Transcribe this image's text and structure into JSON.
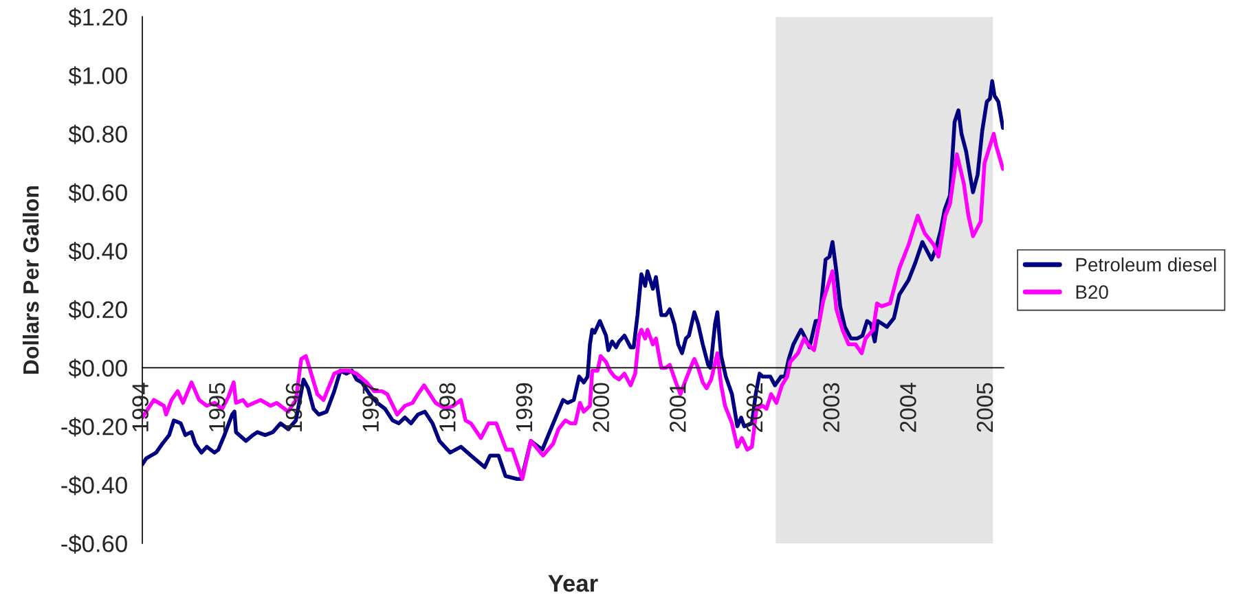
{
  "chart_data": {
    "type": "line",
    "xlabel": "Year",
    "ylabel": "Dollars Per Gallon",
    "xlim": [
      1994,
      2005.22
    ],
    "xticks": [
      1994,
      1995,
      1996,
      1997,
      1998,
      1999,
      2000,
      2001,
      2002,
      2003,
      2004,
      2005
    ],
    "ylim": [
      -0.6,
      1.2
    ],
    "yticks": [
      {
        "value": -0.6,
        "label": "-$0.60"
      },
      {
        "value": -0.4,
        "label": "-$0.40"
      },
      {
        "value": -0.2,
        "label": "-$0.20"
      },
      {
        "value": 0,
        "label": "$0.00"
      },
      {
        "value": 0.2,
        "label": "$0.20"
      },
      {
        "value": 0.4,
        "label": "$0.40"
      },
      {
        "value": 0.6,
        "label": "$0.60"
      },
      {
        "value": 0.8,
        "label": "$0.80"
      },
      {
        "value": 1.0,
        "label": "$1.00"
      },
      {
        "value": 1.2,
        "label": "$1.20"
      }
    ],
    "grid": false,
    "legend": "right",
    "bands": [
      {
        "axis": "x",
        "from": 2002.25,
        "to": 2005.08,
        "color": "#e4e4e4"
      }
    ],
    "series": [
      {
        "name": "Petroleum diesel",
        "color": "#000080",
        "x": [
          1994.0,
          1994.05,
          1994.18,
          1994.26,
          1994.35,
          1994.41,
          1994.5,
          1994.56,
          1994.64,
          1994.69,
          1994.77,
          1994.84,
          1994.94,
          1994.99,
          1995.07,
          1995.17,
          1995.2,
          1995.22,
          1995.35,
          1995.44,
          1995.5,
          1995.6,
          1995.7,
          1995.8,
          1995.9,
          1996.0,
          1996.05,
          1996.1,
          1996.16,
          1996.23,
          1996.3,
          1996.4,
          1996.5,
          1996.58,
          1996.66,
          1996.73,
          1996.79,
          1996.86,
          1996.96,
          1997.06,
          1997.16,
          1997.26,
          1997.34,
          1997.42,
          1997.5,
          1997.59,
          1997.68,
          1997.78,
          1997.87,
          1998.01,
          1998.15,
          1998.28,
          1998.46,
          1998.53,
          1998.64,
          1998.73,
          1998.88,
          1998.94,
          1999.06,
          1999.21,
          1999.32,
          1999.4,
          1999.48,
          1999.54,
          1999.62,
          1999.69,
          1999.75,
          1999.8,
          1999.83,
          1999.86,
          1999.89,
          1999.96,
          2000.04,
          2000.07,
          2000.12,
          2000.17,
          2000.21,
          2000.28,
          2000.36,
          2000.4,
          2000.45,
          2000.5,
          2000.55,
          2000.58,
          2000.65,
          2000.69,
          2000.76,
          2000.82,
          2000.87,
          2000.93,
          2000.98,
          2001.03,
          2001.08,
          2001.12,
          2001.19,
          2001.24,
          2001.3,
          2001.37,
          2001.4,
          2001.46,
          2001.49,
          2001.54,
          2001.6,
          2001.68,
          2001.75,
          2001.8,
          2001.84,
          2001.94,
          2001.99,
          2002.04,
          2002.08,
          2002.18,
          2002.24,
          2002.32,
          2002.37,
          2002.42,
          2002.48,
          2002.58,
          2002.64,
          2002.69,
          2002.77,
          2002.82,
          2002.9,
          2002.95,
          2002.99,
          2003.04,
          2003.09,
          2003.15,
          2003.23,
          2003.31,
          2003.38,
          2003.44,
          2003.49,
          2003.54,
          2003.58,
          2003.7,
          2003.79,
          2003.86,
          2003.98,
          2004.07,
          2004.16,
          2004.28,
          2004.34,
          2004.4,
          2004.45,
          2004.52,
          2004.58,
          2004.63,
          2004.67,
          2004.73,
          2004.78,
          2004.82,
          2004.88,
          2004.94,
          2005.0,
          2005.04,
          2005.07,
          2005.1,
          2005.15,
          2005.21
        ],
        "values": [
          -0.33,
          -0.31,
          -0.29,
          -0.26,
          -0.23,
          -0.18,
          -0.19,
          -0.23,
          -0.22,
          -0.26,
          -0.29,
          -0.27,
          -0.29,
          -0.28,
          -0.23,
          -0.16,
          -0.15,
          -0.22,
          -0.25,
          -0.23,
          -0.22,
          -0.23,
          -0.22,
          -0.19,
          -0.21,
          -0.18,
          -0.11,
          -0.04,
          -0.07,
          -0.14,
          -0.16,
          -0.15,
          -0.08,
          -0.01,
          -0.02,
          -0.01,
          -0.04,
          -0.05,
          -0.09,
          -0.12,
          -0.14,
          -0.18,
          -0.19,
          -0.17,
          -0.19,
          -0.16,
          -0.15,
          -0.19,
          -0.25,
          -0.29,
          -0.27,
          -0.3,
          -0.34,
          -0.3,
          -0.3,
          -0.37,
          -0.38,
          -0.38,
          -0.25,
          -0.28,
          -0.21,
          -0.16,
          -0.11,
          -0.12,
          -0.11,
          -0.03,
          -0.05,
          -0.03,
          0.08,
          0.13,
          0.12,
          0.16,
          0.11,
          0.06,
          0.09,
          0.07,
          0.09,
          0.11,
          0.07,
          0.07,
          0.18,
          0.32,
          0.28,
          0.33,
          0.27,
          0.31,
          0.18,
          0.18,
          0.2,
          0.15,
          0.08,
          0.05,
          0.1,
          0.11,
          0.19,
          0.15,
          0.08,
          0.01,
          0.0,
          0.15,
          0.19,
          0.04,
          -0.03,
          -0.09,
          -0.2,
          -0.17,
          -0.2,
          -0.19,
          -0.09,
          -0.02,
          -0.03,
          -0.03,
          -0.06,
          -0.03,
          -0.03,
          0.03,
          0.08,
          0.13,
          0.1,
          0.07,
          0.16,
          0.16,
          0.37,
          0.38,
          0.43,
          0.33,
          0.21,
          0.14,
          0.1,
          0.1,
          0.11,
          0.16,
          0.15,
          0.09,
          0.16,
          0.14,
          0.17,
          0.25,
          0.3,
          0.36,
          0.43,
          0.37,
          0.41,
          0.47,
          0.54,
          0.59,
          0.84,
          0.88,
          0.8,
          0.74,
          0.66,
          0.6,
          0.66,
          0.81,
          0.91,
          0.92,
          0.98,
          0.93,
          0.91,
          0.82
        ]
      },
      {
        "name": "B20",
        "color": "#ff00ff",
        "x": [
          1994.0,
          1994.05,
          1994.15,
          1994.28,
          1994.31,
          1994.38,
          1994.46,
          1994.53,
          1994.64,
          1994.74,
          1994.84,
          1994.94,
          1995.04,
          1995.12,
          1995.19,
          1995.22,
          1995.31,
          1995.37,
          1995.54,
          1995.67,
          1995.75,
          1995.9,
          1996.0,
          1996.07,
          1996.13,
          1996.2,
          1996.28,
          1996.36,
          1996.5,
          1996.59,
          1996.69,
          1996.79,
          1996.92,
          1997.02,
          1997.12,
          1997.19,
          1997.32,
          1997.42,
          1997.52,
          1997.59,
          1997.67,
          1997.82,
          1997.95,
          1998.05,
          1998.15,
          1998.21,
          1998.28,
          1998.41,
          1998.51,
          1998.61,
          1998.74,
          1998.82,
          1998.95,
          1999.06,
          1999.22,
          1999.35,
          1999.42,
          1999.51,
          1999.58,
          1999.64,
          1999.7,
          1999.75,
          1999.83,
          1999.86,
          1999.93,
          1999.97,
          2000.04,
          2000.09,
          2000.15,
          2000.21,
          2000.28,
          2000.36,
          2000.42,
          2000.47,
          2000.5,
          2000.55,
          2000.58,
          2000.65,
          2000.69,
          2000.76,
          2000.82,
          2000.87,
          2000.95,
          2001.01,
          2001.08,
          2001.14,
          2001.19,
          2001.24,
          2001.3,
          2001.35,
          2001.41,
          2001.49,
          2001.54,
          2001.59,
          2001.68,
          2001.75,
          2001.81,
          2001.88,
          2001.94,
          2002.0,
          2002.08,
          2002.13,
          2002.19,
          2002.26,
          2002.33,
          2002.4,
          2002.44,
          2002.54,
          2002.62,
          2002.67,
          2002.75,
          2002.8,
          2002.87,
          2002.93,
          2002.99,
          2003.04,
          2003.12,
          2003.2,
          2003.29,
          2003.37,
          2003.42,
          2003.52,
          2003.57,
          2003.63,
          2003.74,
          2003.86,
          2003.98,
          2004.1,
          2004.19,
          2004.31,
          2004.37,
          2004.46,
          2004.52,
          2004.61,
          2004.7,
          2004.76,
          2004.82,
          2004.92,
          2004.97,
          2005.03,
          2005.09,
          2005.12,
          2005.21
        ],
        "values": [
          -0.17,
          -0.15,
          -0.11,
          -0.13,
          -0.16,
          -0.11,
          -0.08,
          -0.12,
          -0.05,
          -0.11,
          -0.13,
          -0.12,
          -0.14,
          -0.1,
          -0.05,
          -0.12,
          -0.11,
          -0.13,
          -0.11,
          -0.13,
          -0.12,
          -0.15,
          -0.11,
          0.03,
          0.04,
          -0.02,
          -0.09,
          -0.11,
          -0.02,
          -0.01,
          -0.01,
          -0.02,
          -0.05,
          -0.08,
          -0.08,
          -0.09,
          -0.16,
          -0.13,
          -0.12,
          -0.09,
          -0.06,
          -0.12,
          -0.14,
          -0.13,
          -0.11,
          -0.18,
          -0.19,
          -0.24,
          -0.19,
          -0.19,
          -0.28,
          -0.28,
          -0.38,
          -0.25,
          -0.3,
          -0.26,
          -0.21,
          -0.18,
          -0.19,
          -0.19,
          -0.12,
          -0.15,
          -0.13,
          -0.01,
          -0.01,
          0.04,
          0.02,
          -0.01,
          -0.03,
          -0.04,
          -0.02,
          -0.06,
          -0.02,
          0.11,
          0.13,
          0.1,
          0.13,
          0.08,
          0.1,
          0.0,
          0.0,
          0.01,
          -0.05,
          -0.09,
          -0.04,
          0.0,
          0.03,
          0.0,
          -0.05,
          -0.07,
          -0.04,
          0.05,
          -0.06,
          -0.13,
          -0.19,
          -0.27,
          -0.24,
          -0.28,
          -0.27,
          -0.14,
          -0.13,
          -0.14,
          -0.09,
          -0.12,
          -0.06,
          -0.03,
          0.02,
          0.05,
          0.1,
          0.08,
          0.06,
          0.13,
          0.23,
          0.28,
          0.33,
          0.2,
          0.13,
          0.08,
          0.08,
          0.05,
          0.1,
          0.13,
          0.22,
          0.21,
          0.22,
          0.34,
          0.42,
          0.52,
          0.46,
          0.42,
          0.38,
          0.52,
          0.56,
          0.73,
          0.63,
          0.52,
          0.45,
          0.5,
          0.7,
          0.75,
          0.8,
          0.76,
          0.68
        ]
      }
    ]
  }
}
